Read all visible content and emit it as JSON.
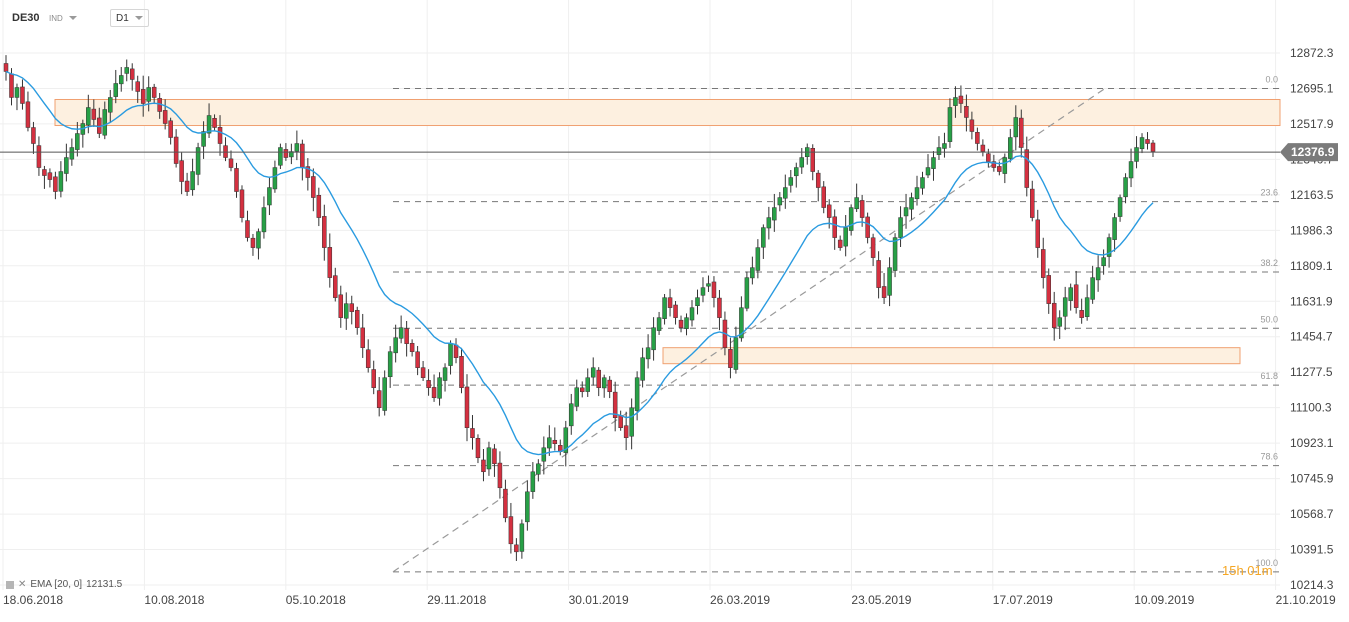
{
  "header": {
    "symbol": "DE30",
    "symbol_type": "IND",
    "timeframe": "D1"
  },
  "indicator": {
    "label": "EMA [20, 0]",
    "value": "12131.5"
  },
  "countdown": "15h 01m",
  "current_price": "12376.9",
  "colors": {
    "up": "#27a046",
    "down": "#d43040",
    "ema": "#2a9be0",
    "zone_fill": "#fdf0e0",
    "zone_border": "#f0a070",
    "price_label_bg": "#7b7b7b",
    "trendline": "#9a9a9a",
    "fib": "#777777"
  },
  "chart_data": {
    "type": "candlestick",
    "y_ticks": [
      "12872.3",
      "12695.1",
      "12517.9",
      "12340.7",
      "12163.5",
      "11986.3",
      "11809.1",
      "11631.9",
      "11454.7",
      "11277.5",
      "11100.3",
      "10923.1",
      "10745.9",
      "10568.7",
      "10391.5",
      "10214.3"
    ],
    "x_ticks": [
      "18.06.2018",
      "10.08.2018",
      "05.10.2018",
      "29.11.2018",
      "30.01.2019",
      "26.03.2019",
      "23.05.2019",
      "17.07.2019",
      "10.09.2019",
      "21.10.2019"
    ],
    "fib_levels": [
      {
        "label": "0.0",
        "price": 12695
      },
      {
        "label": "23.6",
        "price": 12130
      },
      {
        "label": "38.2",
        "price": 11778
      },
      {
        "label": "50.0",
        "price": 11497
      },
      {
        "label": "61.8",
        "price": 11213
      },
      {
        "label": "78.6",
        "price": 10811
      },
      {
        "label": "100.0",
        "price": 10280
      }
    ],
    "zones": [
      {
        "name": "resistance",
        "low": 12510,
        "high": 12640
      },
      {
        "name": "support",
        "low": 11320,
        "high": 11400
      }
    ],
    "ema_period": 20,
    "ema_last": 12131.5,
    "close_series": [
      12780,
      12650,
      12700,
      12620,
      12500,
      12420,
      12300,
      12260,
      12240,
      12180,
      12280,
      12350,
      12400,
      12470,
      12520,
      12600,
      12540,
      12470,
      12590,
      12650,
      12720,
      12760,
      12800,
      12740,
      12680,
      12620,
      12700,
      12650,
      12580,
      12520,
      12450,
      12320,
      12230,
      12180,
      12280,
      12400,
      12480,
      12560,
      12500,
      12420,
      12350,
      12300,
      12180,
      12050,
      11950,
      11900,
      11980,
      12100,
      12200,
      12300,
      12400,
      12350,
      12380,
      12420,
      12300,
      12250,
      12150,
      12050,
      11900,
      11750,
      11650,
      11550,
      11620,
      11580,
      11500,
      11400,
      11300,
      11200,
      11100,
      11250,
      11380,
      11450,
      11500,
      11420,
      11380,
      11300,
      11250,
      11200,
      11150,
      11250,
      11300,
      11420,
      11350,
      11200,
      11000,
      10950,
      10850,
      10780,
      10900,
      10820,
      10700,
      10550,
      10420,
      10380,
      10520,
      10680,
      10780,
      10820,
      10900,
      10950,
      10920,
      10880,
      11000,
      11120,
      11200,
      11180,
      11250,
      11300,
      11200,
      11250,
      11180,
      11050,
      11000,
      10950,
      11100,
      11250,
      11350,
      11400,
      11500,
      11550,
      11650,
      11600,
      11550,
      11500,
      11550,
      11600,
      11650,
      11700,
      11720,
      11650,
      11550,
      11400,
      11300,
      11450,
      11600,
      11750,
      11800,
      11900,
      12000,
      12050,
      12100,
      12150,
      12200,
      12250,
      12300,
      12350,
      12400,
      12280,
      12200,
      12100,
      12050,
      11950,
      11900,
      12000,
      12100,
      12150,
      12050,
      11950,
      11850,
      11700,
      11650,
      11800,
      11950,
      12050,
      12100,
      12150,
      12200,
      12250,
      12300,
      12350,
      12400,
      12420,
      12600,
      12650,
      12620,
      12550,
      12480,
      12420,
      12380,
      12330,
      12300,
      12280,
      12350,
      12450,
      12550,
      12400,
      12200,
      12050,
      11900,
      11750,
      11620,
      11500,
      11550,
      11650,
      11700,
      11600,
      11550,
      11650,
      11750,
      11800,
      11850,
      11950,
      12050,
      12150,
      12250,
      12330,
      12400,
      12450,
      12420,
      12380
    ]
  }
}
